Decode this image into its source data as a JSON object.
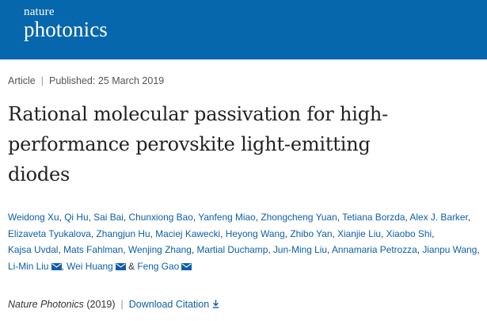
{
  "header": {
    "brand_top": "nature",
    "brand_bottom": "photonics",
    "bg_color": "#0767ad"
  },
  "meta": {
    "type": "Article",
    "published": "Published: 25 March 2019"
  },
  "title_lines": [
    "Rational molecular passivation for high-",
    "performance perovskite light-emitting",
    "diodes"
  ],
  "authors": [
    "Weidong Xu",
    "Qi Hu",
    "Sai Bai",
    "Chunxiong Bao",
    "Yanfeng Miao",
    "Zhongcheng Yuan",
    "Tetiana Borzda",
    "Alex J. Barker",
    "Elizaveta Tyukalova",
    "Zhangjun Hu",
    "Maciej Kawecki",
    "Heyong Wang",
    "Zhibo Yan",
    "Xianjie Liu",
    "Xiaobo Shi",
    "Kajsa Uvdal",
    "Mats Fahlman",
    "Wenjing Zhang",
    "Martial Duchamp",
    "Jun-Ming Liu",
    "Annamaria Petrozza",
    "Jianpu Wang",
    "Li-Min Liu",
    "Wei Huang",
    "Feng Gao"
  ],
  "author_separator": ",",
  "author_last_joiner": "&",
  "citation": {
    "journal": "Nature Photonics",
    "year": "(2019)",
    "download_label": "Download Citation",
    "icon": "download-icon"
  },
  "icons": {
    "corresponding": "mail-icon"
  },
  "colors": {
    "link": "#0d5fa6",
    "text": "#222222"
  }
}
